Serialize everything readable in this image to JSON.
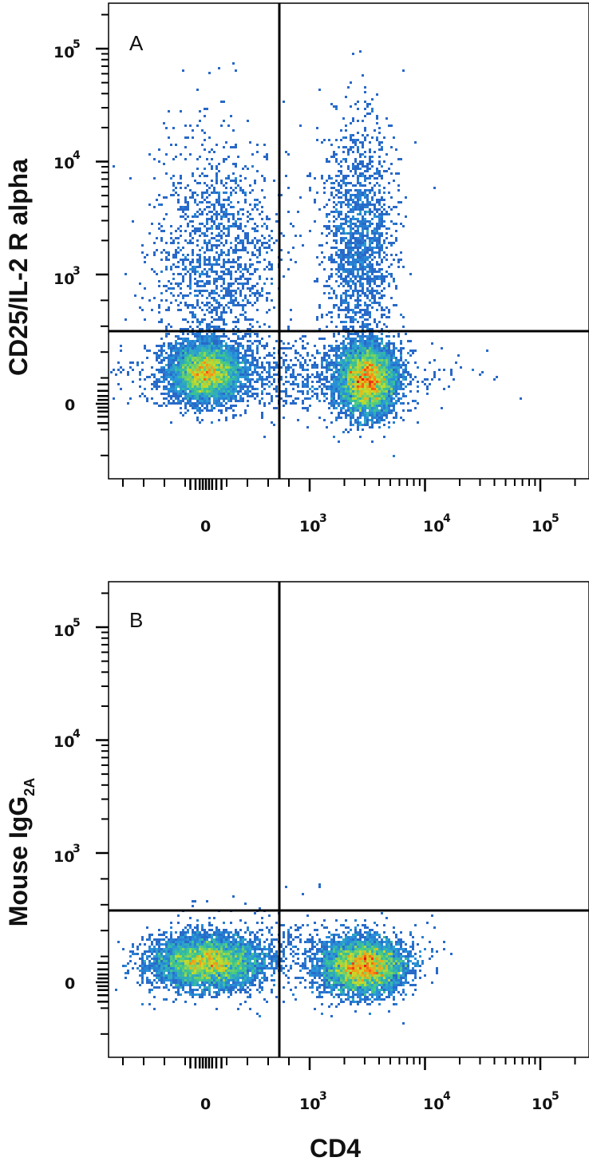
{
  "chart_data": [
    {
      "type": "scatter",
      "panel_label": "A",
      "ylabel": "CD25/IL-2 R alpha",
      "xlabel": "",
      "x_scale": "biexponential",
      "y_scale": "biexponential",
      "x_ticks": [
        "0",
        "10",
        "10",
        "10"
      ],
      "x_tick_exponents": [
        "",
        "3",
        "4",
        "5"
      ],
      "y_ticks": [
        "0",
        "10",
        "10",
        "10"
      ],
      "y_tick_exponents": [
        "",
        "3",
        "4",
        "5"
      ],
      "quadrant_gate": {
        "x": 600,
        "y": 330
      },
      "populations": [
        {
          "name": "",
          "x_center": 0,
          "y_center": 0,
          "density": "high"
        },
        {
          "name": "",
          "x_center": 2600,
          "y_center": -20,
          "density": "very high"
        },
        {
          "name": "",
          "x_center": 0,
          "y_center": 1500,
          "density": "low"
        },
        {
          "name": "",
          "x_center": 2600,
          "y_center": 3000,
          "density": "low"
        }
      ]
    },
    {
      "type": "scatter",
      "panel_label": "B",
      "ylabel": "Mouse IgG",
      "ylabel_subscript": "2A",
      "xlabel": "CD4",
      "x_scale": "biexponential",
      "y_scale": "biexponential",
      "x_ticks": [
        "0",
        "10",
        "10",
        "10"
      ],
      "x_tick_exponents": [
        "",
        "3",
        "4",
        "5"
      ],
      "y_ticks": [
        "0",
        "10",
        "10",
        "10"
      ],
      "y_tick_exponents": [
        "",
        "3",
        "4",
        "5"
      ],
      "quadrant_gate": {
        "x": 600,
        "y": 330
      },
      "populations": [
        {
          "name": "",
          "x_center": 0,
          "y_center": 0,
          "density": "high"
        },
        {
          "name": "",
          "x_center": 2600,
          "y_center": -20,
          "density": "very high"
        }
      ]
    }
  ]
}
